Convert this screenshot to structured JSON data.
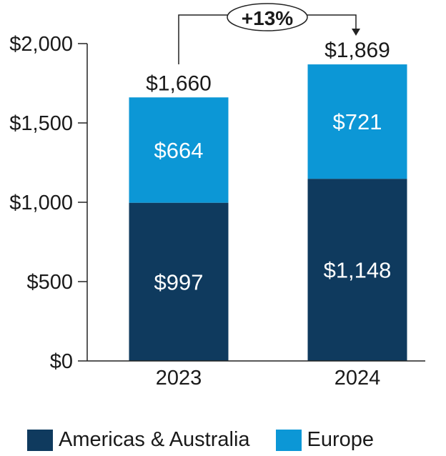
{
  "chart_data": {
    "type": "bar",
    "stacked": true,
    "categories": [
      "2023",
      "2024"
    ],
    "series": [
      {
        "name": "Americas & Australia",
        "values": [
          997,
          1148
        ],
        "labels": [
          "$997",
          "$1,148"
        ],
        "color": "#0f3a5e"
      },
      {
        "name": "Europe",
        "values": [
          664,
          721
        ],
        "labels": [
          "$664",
          "$721"
        ],
        "color": "#0c97d6"
      }
    ],
    "totals": [
      1660,
      1869
    ],
    "total_labels": [
      "$1,660",
      "$1,869"
    ],
    "growth_label": "+13%",
    "ylim": [
      0,
      2000
    ],
    "yticks": [
      0,
      500,
      1000,
      1500,
      2000
    ],
    "ytick_labels": [
      "$0",
      "$500",
      "$1,000",
      "$1,500",
      "$2,000"
    ],
    "title": "",
    "xlabel": "",
    "ylabel": "",
    "grid": false,
    "legend_position": "bottom"
  }
}
